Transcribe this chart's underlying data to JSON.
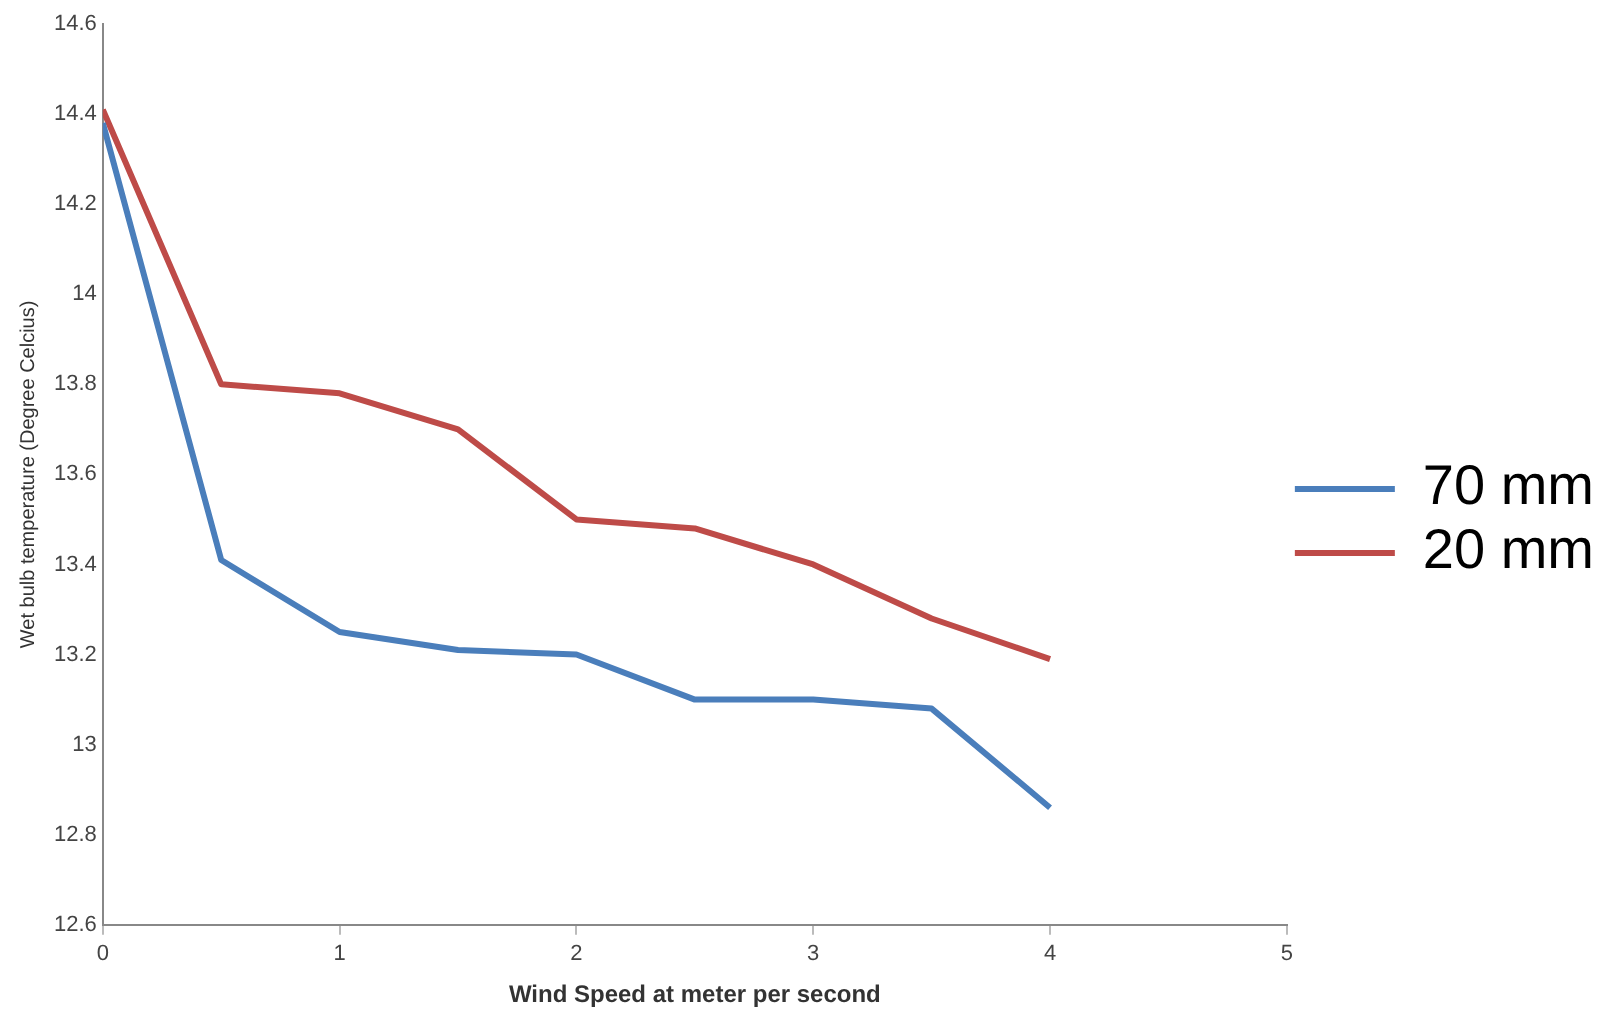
{
  "chart_data": {
    "type": "line",
    "xlabel": "Wind Speed at meter per second",
    "ylabel": "Wet bulb temperature (Degree Celcius)",
    "x": [
      0,
      0.5,
      1,
      1.5,
      2,
      2.5,
      3,
      3.5,
      4
    ],
    "series": [
      {
        "name": "70 mm",
        "color": "#4a7ebb",
        "values": [
          14.38,
          13.41,
          13.25,
          13.21,
          13.2,
          13.1,
          13.1,
          13.08,
          12.86
        ]
      },
      {
        "name": "20 mm",
        "color": "#be4b48",
        "values": [
          14.41,
          13.8,
          13.78,
          13.7,
          13.5,
          13.48,
          13.4,
          13.28,
          13.19
        ]
      }
    ],
    "xlim": [
      0,
      5
    ],
    "xticks": [
      0,
      1,
      2,
      3,
      4,
      5
    ],
    "ylim": [
      12.6,
      14.6
    ],
    "yticks": [
      12.6,
      12.8,
      13,
      13.2,
      13.4,
      13.6,
      13.8,
      14,
      14.2,
      14.4,
      14.6
    ],
    "grid": false,
    "legend": "right",
    "marker": "none",
    "line_style": "solid"
  }
}
